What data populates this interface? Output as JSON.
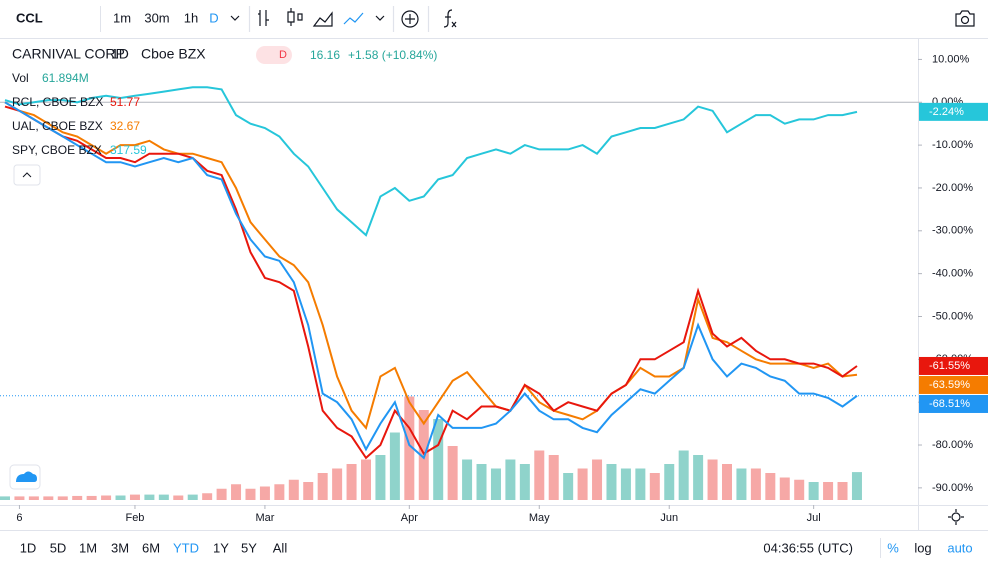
{
  "toolbar": {
    "symbol": "CCL",
    "intervals": [
      "1m",
      "30m",
      "1h",
      "D"
    ]
  },
  "chart_data": {
    "type": "line",
    "interval": "1D",
    "exchange": "Cboe BZX",
    "badge": "D",
    "price": "16.16",
    "change": "+1.58 (+10.84%)",
    "volume_label": "Vol",
    "volume_value": "61.894M",
    "categories": [
      null,
      "6",
      null,
      null,
      null,
      null,
      null,
      null,
      null,
      "Feb",
      null,
      null,
      null,
      null,
      null,
      null,
      null,
      null,
      "Mar",
      null,
      null,
      null,
      null,
      null,
      null,
      null,
      null,
      null,
      "Apr",
      null,
      null,
      null,
      null,
      null,
      null,
      null,
      null,
      "May",
      null,
      null,
      null,
      null,
      null,
      null,
      null,
      null,
      "Jun",
      null,
      null,
      null,
      null,
      null,
      null,
      null,
      null,
      null,
      "Jul",
      null,
      null,
      null
    ],
    "series": [
      {
        "name": "CARNIVAL CORP",
        "color": "#2196f3",
        "values": [
          0,
          -2,
          -4,
          -6,
          -8,
          -10,
          -12,
          -14,
          -14,
          -15,
          -14,
          -13,
          -14,
          -13,
          -17,
          -18,
          -26,
          -32,
          -36,
          -37,
          -42,
          -52,
          -68,
          -70,
          -74,
          -81,
          -75,
          -70,
          -80,
          -83,
          -73,
          -76,
          -76,
          -76,
          -75,
          -72,
          -68,
          -72,
          -74,
          -74,
          -76,
          -77,
          -73,
          -70,
          -67,
          -68,
          -65,
          -62,
          -52,
          -60,
          -64,
          -61,
          -62,
          -64,
          -65,
          -68,
          -68,
          -69,
          -71,
          -68.51
        ],
        "value_labels": [
          null,
          null,
          null,
          null,
          null,
          null,
          null,
          null,
          null,
          null,
          null,
          null,
          null,
          null,
          null,
          null,
          null,
          null,
          null,
          null,
          null,
          null,
          null,
          null,
          null,
          null,
          null,
          null,
          null,
          null,
          null,
          null,
          null,
          null,
          null,
          null,
          null,
          null,
          null,
          null,
          null,
          null,
          null,
          null,
          null,
          null,
          null,
          null,
          null,
          null,
          null,
          null,
          null,
          null,
          null,
          null,
          null,
          null,
          null,
          "-68.51%"
        ]
      },
      {
        "name": "RCL, CBOE BZX",
        "price": "51.77",
        "color": "#e8170d",
        "values": [
          -1,
          -2,
          -4,
          -6,
          -8,
          -9,
          -11,
          -13,
          -13,
          -14,
          -12,
          -12,
          -12,
          -13,
          -16,
          -17,
          -25,
          -35,
          -41,
          -42,
          -44,
          -57,
          -72,
          -76,
          -78,
          -83,
          -80,
          -72,
          -76,
          -82,
          -80,
          -72,
          -74,
          -71,
          -71,
          -72,
          -66,
          -68,
          -72,
          -70,
          -71,
          -72,
          -68,
          -66,
          -60,
          -60,
          -58,
          -56,
          -44,
          -54,
          -57,
          -55,
          -58,
          -60,
          -60,
          -61,
          -61,
          -62,
          -64,
          -61.55
        ],
        "value_labels": [
          null,
          null,
          null,
          null,
          null,
          null,
          null,
          null,
          null,
          null,
          null,
          null,
          null,
          null,
          null,
          null,
          null,
          null,
          null,
          null,
          null,
          null,
          null,
          null,
          null,
          null,
          null,
          null,
          null,
          null,
          null,
          null,
          null,
          null,
          null,
          null,
          null,
          null,
          null,
          null,
          null,
          null,
          null,
          null,
          null,
          null,
          null,
          null,
          null,
          null,
          null,
          null,
          null,
          null,
          null,
          null,
          null,
          null,
          null,
          "-61.55%"
        ]
      },
      {
        "name": "UAL, CBOE BZX",
        "price": "32.67",
        "color": "#f57c00",
        "values": [
          0,
          -2,
          -3,
          -5,
          -7,
          -8,
          -10,
          -12,
          -10,
          -10,
          -9,
          -11,
          -12,
          -12,
          -13,
          -14,
          -20,
          -28,
          -32,
          -36,
          -38,
          -42,
          -52,
          -64,
          -72,
          -76,
          -64,
          -62,
          -70,
          -75,
          -70,
          -65,
          -63,
          -67,
          -71,
          -72,
          -66,
          -70,
          -72,
          -73,
          -74,
          -72,
          -68,
          -66,
          -62,
          -64,
          -64,
          -62,
          -46,
          -55,
          -56,
          -58,
          -60,
          -61,
          -61,
          -61,
          -62,
          -61,
          -64,
          -63.59
        ],
        "value_labels": [
          null,
          null,
          null,
          null,
          null,
          null,
          null,
          null,
          null,
          null,
          null,
          null,
          null,
          null,
          null,
          null,
          null,
          null,
          null,
          null,
          null,
          null,
          null,
          null,
          null,
          null,
          null,
          null,
          null,
          null,
          null,
          null,
          null,
          null,
          null,
          null,
          null,
          null,
          null,
          null,
          null,
          null,
          null,
          null,
          null,
          null,
          null,
          null,
          null,
          null,
          null,
          null,
          null,
          null,
          null,
          null,
          null,
          null,
          null,
          "-63.59%"
        ]
      },
      {
        "name": "SPY, CBOE BZX",
        "price": "317.59",
        "color": "#26c6da",
        "values": [
          0.5,
          -0.5,
          0,
          0.5,
          0.5,
          0,
          1,
          1.5,
          1,
          1.5,
          2,
          2.5,
          3,
          3.5,
          3.5,
          3,
          -3,
          -5,
          -6,
          -8,
          -12,
          -15,
          -20,
          -25,
          -28,
          -31,
          -22,
          -20,
          -23,
          -22,
          -18,
          -17,
          -13,
          -12,
          -11,
          -12,
          -10,
          -11,
          -11,
          -11,
          -10,
          -12,
          -8,
          -7,
          -6,
          -6,
          -5,
          -4,
          -1,
          -2,
          -7,
          -5,
          -3,
          -3,
          -5,
          -4,
          -4,
          -3,
          -3,
          -2.24
        ],
        "value_labels": [
          null,
          null,
          null,
          null,
          null,
          null,
          null,
          null,
          null,
          null,
          null,
          null,
          null,
          null,
          null,
          null,
          null,
          null,
          null,
          null,
          null,
          null,
          null,
          null,
          null,
          null,
          null,
          null,
          null,
          null,
          null,
          null,
          null,
          null,
          null,
          null,
          null,
          null,
          null,
          null,
          null,
          null,
          null,
          null,
          null,
          null,
          null,
          null,
          null,
          null,
          null,
          null,
          null,
          null,
          null,
          null,
          null,
          null,
          null,
          "-2.24%"
        ]
      }
    ],
    "volume": {
      "up_color": "#8fd3cb",
      "down_color": "#f6a8a6",
      "values": [
        8,
        8,
        8,
        8,
        8,
        9,
        9,
        10,
        10,
        12,
        12,
        12,
        10,
        12,
        15,
        25,
        35,
        25,
        30,
        35,
        45,
        40,
        60,
        70,
        80,
        90,
        100,
        150,
        230,
        200,
        180,
        120,
        90,
        80,
        70,
        90,
        80,
        110,
        100,
        60,
        70,
        90,
        80,
        70,
        70,
        60,
        80,
        110,
        100,
        90,
        80,
        70,
        70,
        60,
        50,
        45,
        40,
        40,
        40,
        62
      ]
    },
    "ylim": [
      -94,
      15
    ],
    "yticks": [
      {
        "value": 10,
        "label": "10.00%"
      },
      {
        "value": 0,
        "label": "0.00%"
      },
      {
        "value": -10,
        "label": "-10.00%"
      },
      {
        "value": -20,
        "label": "-20.00%"
      },
      {
        "value": -30,
        "label": "-30.00%"
      },
      {
        "value": -40,
        "label": "-40.00%"
      },
      {
        "value": -50,
        "label": "-50.00%"
      },
      {
        "value": -60,
        "label": "-60.00%"
      },
      {
        "value": -70,
        "label": "-70.00%"
      },
      {
        "value": -80,
        "label": "-80.00%"
      },
      {
        "value": -90,
        "label": "-90.00%"
      }
    ],
    "grid": false
  },
  "bottom_bar": {
    "ranges": [
      "1D",
      "5D",
      "1M",
      "3M",
      "6M",
      "YTD",
      "1Y",
      "5Y",
      "All"
    ],
    "time": "04:36:55 (UTC)",
    "options": [
      "%",
      "log",
      "auto"
    ]
  }
}
